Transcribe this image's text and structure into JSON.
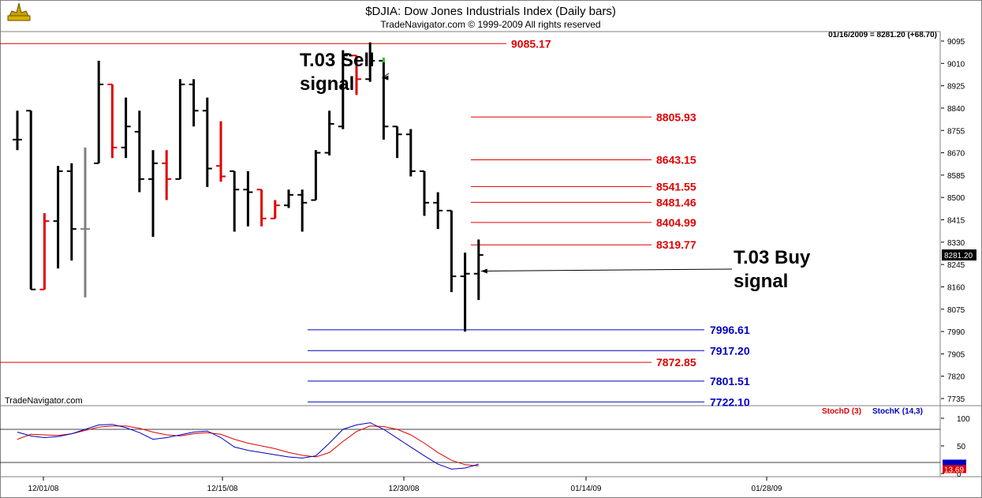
{
  "header": {
    "title": "$DJIA:  Dow Jones Industrials Index  (Daily bars)",
    "copyright": "TradeNavigator.com © 1999-2009 All rights reserved",
    "last_bar_info": "01/16/2009 = 8281.20 (+68.70)",
    "watermark": "TradeNavigator.com"
  },
  "colors": {
    "up_bar": "#000000",
    "down_bar": "#e00000",
    "neutral_bar": "#808080",
    "signal_bar": "#22cc22",
    "resistance": "#e00000",
    "support": "#0000c0",
    "stoch_d": "#e00000",
    "stoch_k": "#0000c0"
  },
  "chart_data": [
    {
      "type": "ohlc",
      "title": "$DJIA:  Dow Jones Industrials Index  (Daily bars)",
      "y_ticks": [
        9095,
        9010,
        8925,
        8840,
        8755,
        8670,
        8585,
        8500,
        8415,
        8330,
        8245,
        8160,
        8075,
        7990,
        7905,
        7820,
        7735
      ],
      "x_ticks": [
        "12/01/08",
        "12/15/08",
        "12/30/08",
        "01/14/09",
        "01/28/09"
      ],
      "last_price_label": "8281.20",
      "bars": [
        {
          "date": "11/26",
          "o": 8720,
          "h": 8830,
          "l": 8680,
          "c": 8720,
          "color": "up"
        },
        {
          "date": "11/28",
          "o": 8830,
          "h": 8830,
          "l": 8150,
          "c": 8150,
          "color": "up"
        },
        {
          "date": "12/01",
          "o": 8150,
          "h": 8440,
          "l": 8150,
          "c": 8410,
          "color": "down"
        },
        {
          "date": "12/02",
          "o": 8410,
          "h": 8620,
          "l": 8230,
          "c": 8600,
          "color": "up"
        },
        {
          "date": "12/03",
          "o": 8600,
          "h": 8630,
          "l": 8260,
          "c": 8380,
          "color": "up"
        },
        {
          "date": "12/04",
          "o": 8380,
          "h": 8690,
          "l": 8120,
          "c": 8380,
          "color": "neutral"
        },
        {
          "date": "12/05",
          "o": 8630,
          "h": 9020,
          "l": 8630,
          "c": 8930,
          "color": "up"
        },
        {
          "date": "12/08",
          "o": 8930,
          "h": 8930,
          "l": 8650,
          "c": 8690,
          "color": "down"
        },
        {
          "date": "12/09",
          "o": 8690,
          "h": 8880,
          "l": 8650,
          "c": 8770,
          "color": "up"
        },
        {
          "date": "12/10",
          "o": 8750,
          "h": 8830,
          "l": 8520,
          "c": 8570,
          "color": "up"
        },
        {
          "date": "12/11",
          "o": 8570,
          "h": 8680,
          "l": 8350,
          "c": 8630,
          "color": "up"
        },
        {
          "date": "12/12",
          "o": 8630,
          "h": 8680,
          "l": 8490,
          "c": 8570,
          "color": "down"
        },
        {
          "date": "12/15",
          "o": 8570,
          "h": 8950,
          "l": 8570,
          "c": 8930,
          "color": "up"
        },
        {
          "date": "12/16",
          "o": 8930,
          "h": 8950,
          "l": 8770,
          "c": 8830,
          "color": "up"
        },
        {
          "date": "12/17",
          "o": 8830,
          "h": 8880,
          "l": 8540,
          "c": 8610,
          "color": "up"
        },
        {
          "date": "12/18",
          "o": 8620,
          "h": 8790,
          "l": 8560,
          "c": 8580,
          "color": "down"
        },
        {
          "date": "12/19",
          "o": 8600,
          "h": 8600,
          "l": 8370,
          "c": 8530,
          "color": "up"
        },
        {
          "date": "12/22",
          "o": 8530,
          "h": 8600,
          "l": 8390,
          "c": 8520,
          "color": "up"
        },
        {
          "date": "12/23",
          "o": 8530,
          "h": 8530,
          "l": 8390,
          "c": 8420,
          "color": "down"
        },
        {
          "date": "12/24",
          "o": 8420,
          "h": 8490,
          "l": 8420,
          "c": 8470,
          "color": "down"
        },
        {
          "date": "12/26",
          "o": 8470,
          "h": 8530,
          "l": 8460,
          "c": 8510,
          "color": "up"
        },
        {
          "date": "12/29",
          "o": 8510,
          "h": 8530,
          "l": 8370,
          "c": 8480,
          "color": "up"
        },
        {
          "date": "12/30",
          "o": 8490,
          "h": 8680,
          "l": 8490,
          "c": 8670,
          "color": "up"
        },
        {
          "date": "12/31",
          "o": 8670,
          "h": 8830,
          "l": 8660,
          "c": 8780,
          "color": "up"
        },
        {
          "date": "01/02",
          "o": 8770,
          "h": 9060,
          "l": 8760,
          "c": 9040,
          "color": "up"
        },
        {
          "date": "01/05",
          "o": 9040,
          "h": 9040,
          "l": 8890,
          "c": 8950,
          "color": "down"
        },
        {
          "date": "01/06",
          "o": 8950,
          "h": 9090,
          "l": 8940,
          "c": 9020,
          "color": "up"
        },
        {
          "date": "01/07",
          "o": 9020,
          "h": 9020,
          "l": 8720,
          "c": 8770,
          "color": "up"
        },
        {
          "date": "01/08",
          "o": 8770,
          "h": 8770,
          "l": 8650,
          "c": 8740,
          "color": "up"
        },
        {
          "date": "01/09",
          "o": 8740,
          "h": 8760,
          "l": 8580,
          "c": 8600,
          "color": "up"
        },
        {
          "date": "01/12",
          "o": 8600,
          "h": 8600,
          "l": 8430,
          "c": 8480,
          "color": "up"
        },
        {
          "date": "01/13",
          "o": 8480,
          "h": 8520,
          "l": 8380,
          "c": 8450,
          "color": "up"
        },
        {
          "date": "01/14",
          "o": 8450,
          "h": 8450,
          "l": 8140,
          "c": 8200,
          "color": "up"
        },
        {
          "date": "01/15",
          "o": 8200,
          "h": 8290,
          "l": 7990,
          "c": 8210,
          "color": "up"
        },
        {
          "date": "01/16",
          "o": 8210,
          "h": 8340,
          "l": 8110,
          "c": 8281.2,
          "color": "up"
        }
      ],
      "resistance_levels": [
        {
          "value": 9085.17,
          "label": "9085.17",
          "span": "full"
        },
        {
          "value": 8805.93,
          "label": "8805.93",
          "span": "recent"
        },
        {
          "value": 8643.15,
          "label": "8643.15",
          "span": "recent"
        },
        {
          "value": 8541.55,
          "label": "8541.55",
          "span": "recent"
        },
        {
          "value": 8481.46,
          "label": "8481.46",
          "span": "recent"
        },
        {
          "value": 8404.99,
          "label": "8404.99",
          "span": "recent"
        },
        {
          "value": 8319.77,
          "label": "8319.77",
          "span": "recent"
        },
        {
          "value": 7872.85,
          "label": "7872.85",
          "span": "full"
        }
      ],
      "support_levels": [
        {
          "value": 7996.61,
          "label": "7996.61"
        },
        {
          "value": 7917.2,
          "label": "7917.20"
        },
        {
          "value": 7801.51,
          "label": "7801.51"
        },
        {
          "value": 7722.1,
          "label": "7722.10"
        }
      ],
      "annotations": [
        {
          "text_lines": [
            "T.03 Sell",
            "signal"
          ],
          "points_to_date": "01/07",
          "points_to_value": 8955
        },
        {
          "text_lines": [
            "T.03 Buy",
            "signal"
          ],
          "points_to_date": "01/16",
          "points_to_value": 8220
        }
      ]
    },
    {
      "type": "line",
      "y_ticks": [
        100,
        50,
        0
      ],
      "reference_lines": [
        80,
        20
      ],
      "legend": [
        "StochD (3)",
        "StochK (14,3)"
      ],
      "last_value_label": "13.69",
      "series": [
        {
          "name": "StochD (3)",
          "values": [
            62,
            71,
            70,
            69,
            72,
            78,
            84,
            86,
            86,
            82,
            75,
            70,
            68,
            72,
            74,
            71,
            62,
            55,
            50,
            45,
            38,
            33,
            30,
            38,
            58,
            76,
            86,
            85,
            80,
            70,
            55,
            38,
            24,
            16,
            14
          ]
        },
        {
          "name": "StochK (14,3)",
          "values": [
            75,
            68,
            65,
            67,
            72,
            80,
            88,
            89,
            83,
            74,
            62,
            65,
            70,
            75,
            77,
            65,
            48,
            42,
            38,
            34,
            30,
            28,
            32,
            55,
            80,
            88,
            92,
            80,
            64,
            48,
            32,
            17,
            8,
            10,
            17
          ]
        }
      ]
    }
  ]
}
